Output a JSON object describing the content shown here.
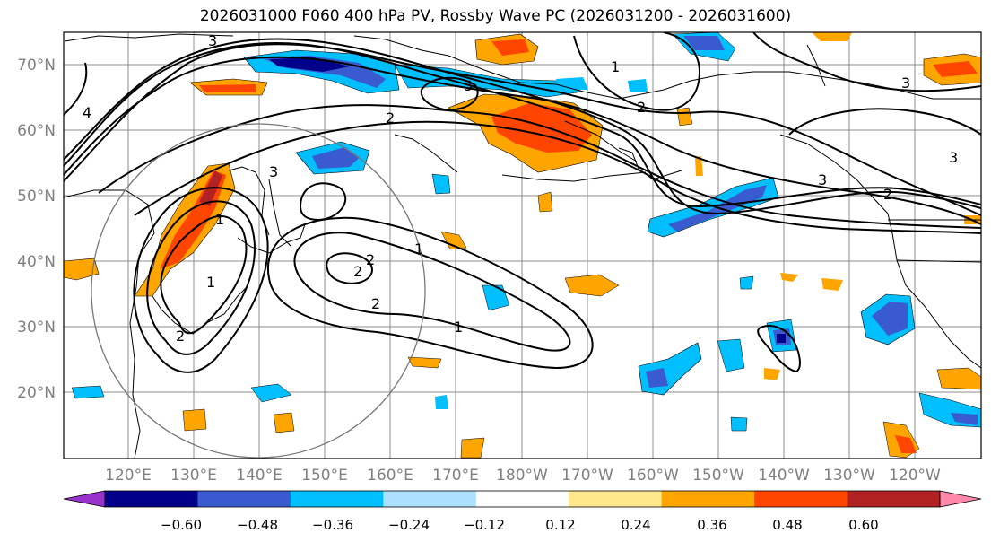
{
  "title": "2026031000 F060 400 hPa PV, Rossby Wave PC (2026031200 - 2026031600)",
  "lat_labels": [
    "70°N",
    "60°N",
    "50°N",
    "40°N",
    "30°N",
    "20°N"
  ],
  "lon_labels": [
    "120°E",
    "130°E",
    "140°E",
    "150°E",
    "160°E",
    "170°E",
    "180°W",
    "170°W",
    "160°W",
    "150°W",
    "140°W",
    "130°W",
    "120°W"
  ],
  "contour_labels": [
    "3",
    "4",
    "3",
    "1",
    "2",
    "3",
    "3",
    "2",
    "1",
    "2",
    "2",
    "1",
    "2",
    "3",
    "2",
    "1",
    "1",
    "2",
    "3"
  ],
  "colorbar": {
    "ticks": [
      "−0.60",
      "−0.48",
      "−0.36",
      "−0.24",
      "−0.12",
      "0.12",
      "0.24",
      "0.36",
      "0.48",
      "0.60"
    ],
    "colors": [
      "#9932CC",
      "#00008B",
      "#3A5BD0",
      "#00BFFF",
      "#ADDFFF",
      "#FFFFFF",
      "#FFE98A",
      "#FFA500",
      "#FF4500",
      "#B22222",
      "#FF88AA"
    ]
  }
}
